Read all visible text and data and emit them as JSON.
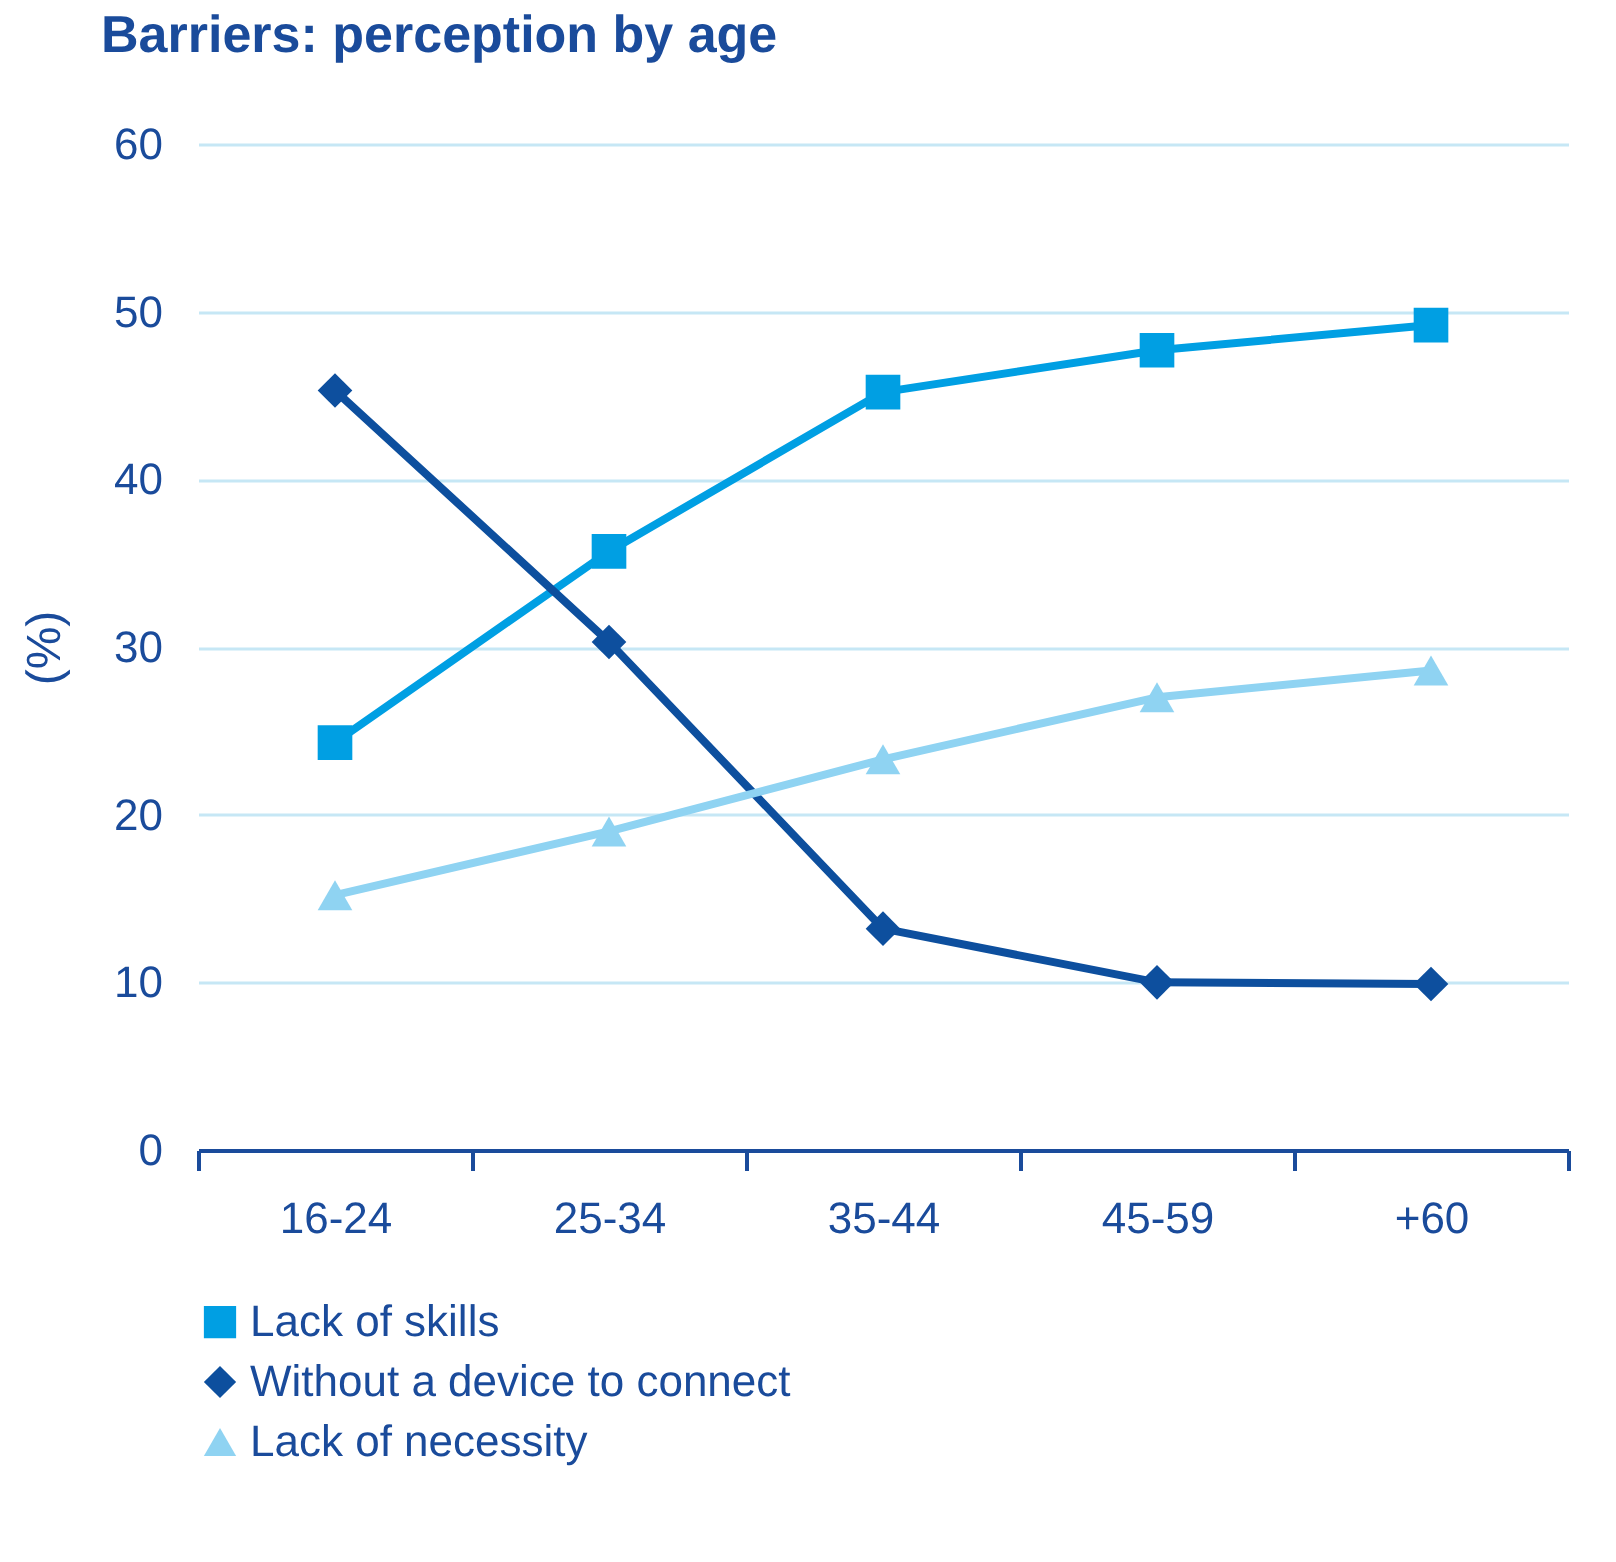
{
  "chart_data": {
    "type": "line",
    "title": "Barriers: perception by age",
    "ylabel": "(%)",
    "categories": [
      "16-24",
      "25-34",
      "35-44",
      "45-59",
      "+60"
    ],
    "series": [
      {
        "name": "Lack of skills",
        "color": "#009fe3",
        "marker": "square",
        "values": [
          24.3,
          35.7,
          45.2,
          47.7,
          49.2
        ]
      },
      {
        "name": "Without a device to connect",
        "color": "#0d4f9e",
        "marker": "diamond",
        "values": [
          45.3,
          30.3,
          13.2,
          10.0,
          9.9
        ]
      },
      {
        "name": "Lack of necessity",
        "color": "#8fd3f2",
        "marker": "triangle",
        "values": [
          15.2,
          19.0,
          23.3,
          27.0,
          28.6
        ]
      }
    ],
    "ylim": [
      0,
      60
    ],
    "yticks": [
      0,
      10,
      20,
      30,
      40,
      50,
      60
    ],
    "grid": "y",
    "legend": "bottom",
    "line_style": "solid"
  }
}
